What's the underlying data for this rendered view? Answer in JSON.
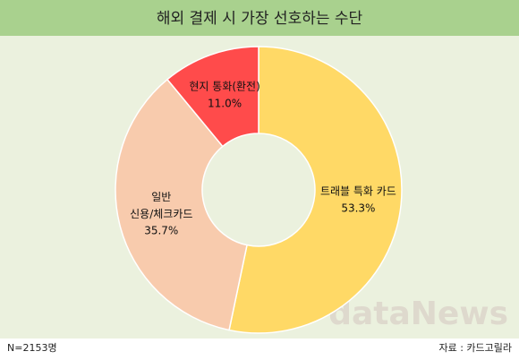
{
  "chart_data": {
    "type": "donut",
    "title": "해외 결제 시 가장 선호하는 수단",
    "categories": [
      "트래블 특화 카드",
      "일반\n신용/체크카드",
      "현지 통화(환전)"
    ],
    "values": [
      53.3,
      35.7,
      11.0
    ],
    "value_labels": [
      "53.3%",
      "35.7%",
      "11.0%"
    ],
    "colors": [
      "#FFD966",
      "#F8CBAD",
      "#FF4B4B"
    ],
    "note": "N=2153명",
    "source": "자료 : 카드고릴라",
    "watermark": "dataNews"
  }
}
